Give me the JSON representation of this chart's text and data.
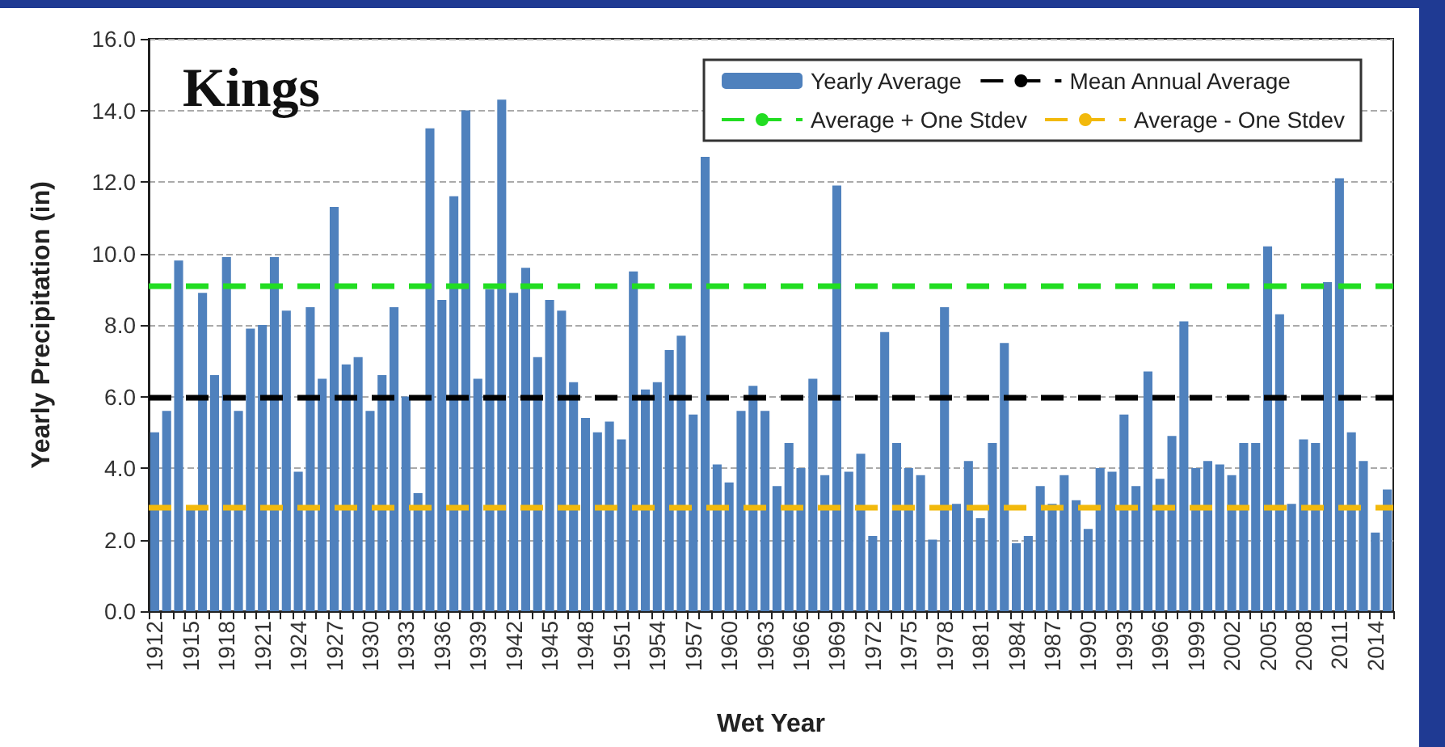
{
  "chart_data": {
    "type": "bar",
    "title": "Kings",
    "xlabel": "Wet Year",
    "ylabel": "Yearly Precipitation (in)",
    "categories": [
      "1912",
      null,
      null,
      "1915",
      null,
      null,
      "1918",
      null,
      null,
      "1921",
      null,
      null,
      "1924",
      null,
      null,
      "1927",
      null,
      null,
      "1930",
      null,
      null,
      "1933",
      null,
      null,
      "1936",
      null,
      null,
      "1939",
      null,
      null,
      "1942",
      null,
      null,
      "1945",
      null,
      null,
      "1948",
      null,
      null,
      "1951",
      null,
      null,
      "1954",
      null,
      null,
      "1957",
      null,
      null,
      "1960",
      null,
      null,
      "1963",
      null,
      null,
      "1966",
      null,
      null,
      "1969",
      null,
      null,
      "1972",
      null,
      null,
      "1975",
      null,
      null,
      "1978",
      null,
      null,
      "1981",
      null,
      null,
      "1984",
      null,
      null,
      "1987",
      null,
      null,
      "1990",
      null,
      null,
      "1993",
      null,
      null,
      "1996",
      null,
      null,
      "1999",
      null,
      null,
      "2002",
      null,
      null,
      "2005",
      null,
      null,
      "2008",
      null,
      null,
      "2011",
      null,
      null,
      "2014",
      null
    ],
    "series": [
      {
        "name": "Yearly Average",
        "color": "#4f81bd",
        "values": [
          5.0,
          5.6,
          9.8,
          2.9,
          8.9,
          6.6,
          9.9,
          5.6,
          7.9,
          8.0,
          9.9,
          8.4,
          3.9,
          8.5,
          6.5,
          11.3,
          6.9,
          7.1,
          5.6,
          6.6,
          8.5,
          6.0,
          3.3,
          13.5,
          8.7,
          11.6,
          14.0,
          6.5,
          9.0,
          14.3,
          8.9,
          9.6,
          7.1,
          8.7,
          8.4,
          6.4,
          5.4,
          5.0,
          5.3,
          4.8,
          9.5,
          6.2,
          6.4,
          7.3,
          7.7,
          5.5,
          12.7,
          4.1,
          3.6,
          5.6,
          6.3,
          5.6,
          3.5,
          4.7,
          4.0,
          6.5,
          3.8,
          11.9,
          3.9,
          4.4,
          2.1,
          7.8,
          4.7,
          4.0,
          3.8,
          2.0,
          8.5,
          3.0,
          4.2,
          2.6,
          4.7,
          7.5,
          1.9,
          2.1,
          3.5,
          3.0,
          3.8,
          3.1,
          2.3,
          4.0,
          3.9,
          5.5,
          3.5,
          6.7,
          3.7,
          4.9,
          8.1,
          4.0,
          4.2,
          4.1,
          3.8,
          4.7,
          4.7,
          10.2,
          8.3,
          3.0,
          4.8,
          4.7,
          9.2,
          12.1,
          5.0,
          4.2,
          2.2,
          3.4
        ]
      }
    ],
    "ylim": [
      0,
      16
    ],
    "yticks": [
      {
        "value": 0,
        "label": "0.0"
      },
      {
        "value": 2,
        "label": "2.0"
      },
      {
        "value": 4,
        "label": "4.0"
      },
      {
        "value": 6,
        "label": "6.0"
      },
      {
        "value": 8,
        "label": "8.0"
      },
      {
        "value": 10,
        "label": "10.0"
      },
      {
        "value": 12,
        "label": "12.0"
      },
      {
        "value": 14,
        "label": "14.0"
      },
      {
        "value": 16,
        "label": "16.0"
      }
    ],
    "grid": "y",
    "legend": "top right",
    "ref_lines": [
      {
        "axis": "y",
        "value": 6.0,
        "label": "Mean Annual Average",
        "color": "#000000",
        "line_style": "dashed"
      },
      {
        "axis": "y",
        "value": 9.1,
        "label": "Average + One Stdev",
        "color": "#22dd22",
        "line_style": "dashed"
      },
      {
        "axis": "y",
        "value": 2.9,
        "label": "Average - One Stdev",
        "color": "#f2b90c",
        "line_style": "dashed"
      }
    ]
  }
}
